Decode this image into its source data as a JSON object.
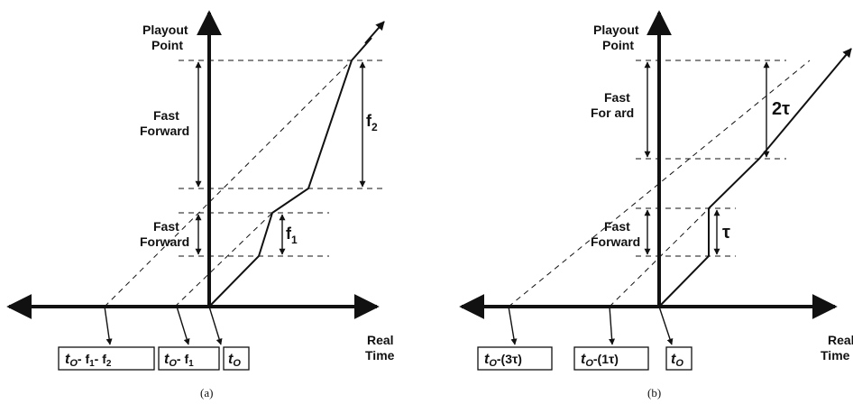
{
  "panel_a": {
    "y_label_line1": "Playout",
    "y_label_line2": "Point",
    "x_label_line1": "Real",
    "x_label_line2": "Time",
    "ff_upper_line1": "Fast",
    "ff_upper_line2": "Forward",
    "ff_lower_line1": "Fast",
    "ff_lower_line2": "Forward",
    "f2_main": "f",
    "f2_sub": "2",
    "f1_main": "f",
    "f1_sub": "1",
    "box1_main": "t",
    "box1_sub": "O",
    "box1_rest": "- f",
    "box1_s1": "1",
    "box1_mid": "- f",
    "box1_s2": "2",
    "box2_main": "t",
    "box2_sub": "O",
    "box2_rest": "- f",
    "box2_s1": "1",
    "box3_main": "t",
    "box3_sub": "O",
    "caption": "(a)"
  },
  "panel_b": {
    "y_label_line1": "Playout",
    "y_label_line2": "Point",
    "x_label_line1": "Real",
    "x_label_line2": "Time",
    "ff_upper_line1": "Fast",
    "ff_upper_line2": "For  ard",
    "ff_lower_line1": "Fast",
    "ff_lower_line2": "Forward",
    "two_tau": "2τ",
    "tau": "τ",
    "box1_main": "t",
    "box1_sub": "O",
    "box1_rest": "-(3τ)",
    "box2_main": "t",
    "box2_sub": "O",
    "box2_rest": "-(1τ)",
    "box3_main": "t",
    "box3_sub": "O",
    "caption": "(b)"
  }
}
